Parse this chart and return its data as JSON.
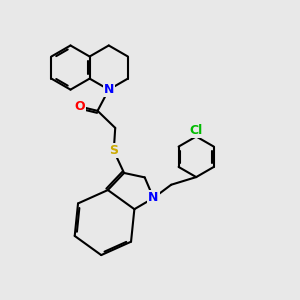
{
  "bg_color": "#e8e8e8",
  "bond_color": "#000000",
  "bond_width": 1.5,
  "atom_colors": {
    "N": "#0000ff",
    "O": "#ff0000",
    "S": "#ccaa00",
    "Cl": "#00bb00",
    "C": "#000000"
  },
  "font_size_atom": 9,
  "xlim": [
    0,
    10
  ],
  "ylim": [
    0,
    10
  ]
}
